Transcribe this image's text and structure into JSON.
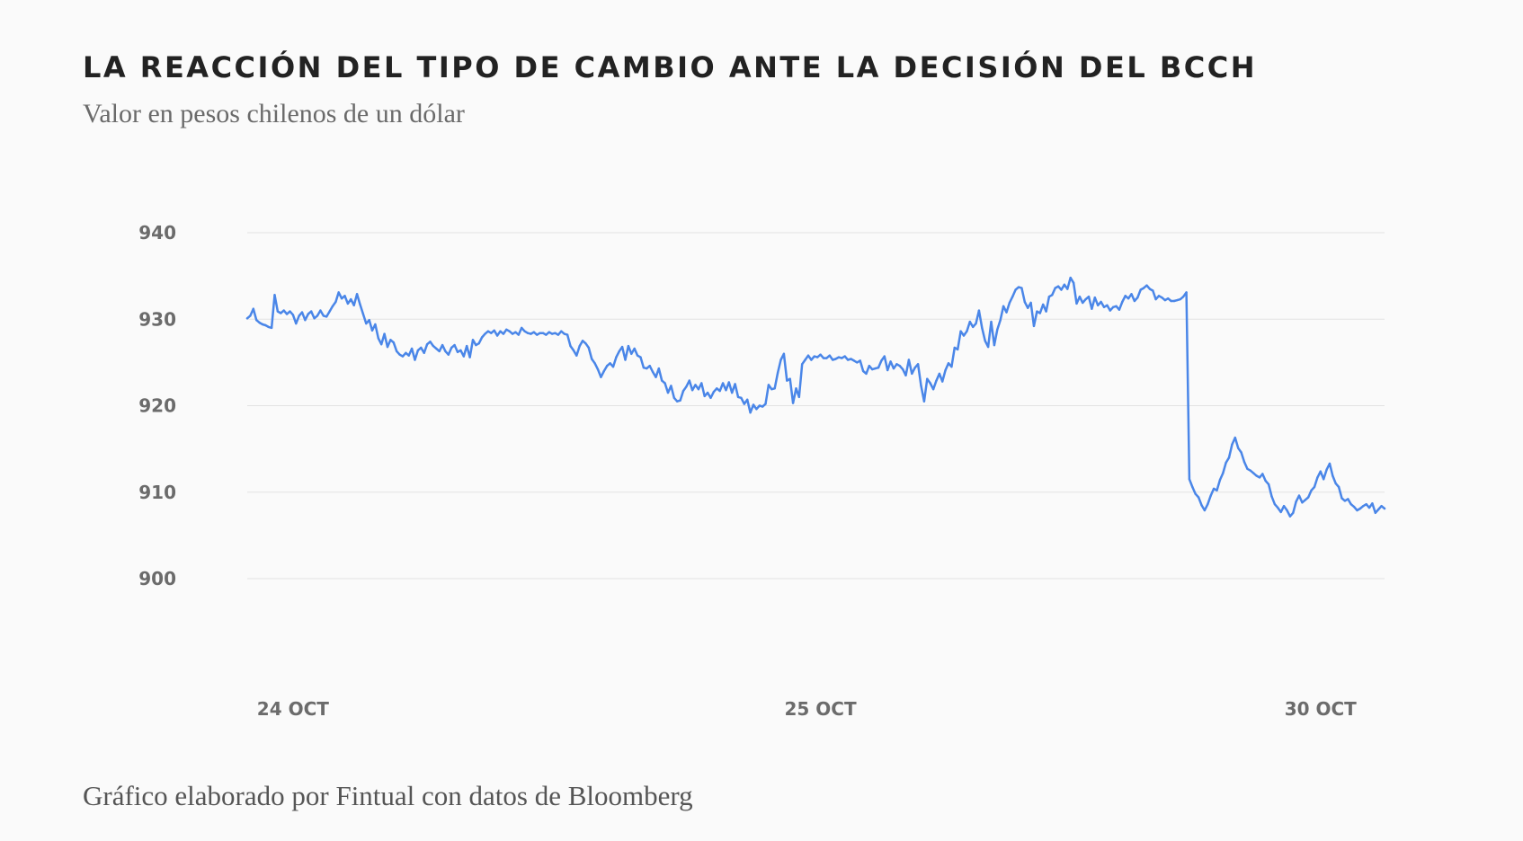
{
  "chart": {
    "title": "LA REACCIÓN DEL TIPO DE CAMBIO ANTE LA DECISIÓN DEL BCCH",
    "subtitle": "Valor en pesos chilenos de un dólar",
    "source": "Gráfico elaborado por Fintual con datos de Bloomberg"
  },
  "colors": {
    "line": "#4a86e8",
    "grid": "#e2e2e2",
    "background": "#fafafa"
  },
  "chart_data": {
    "type": "line",
    "title": "LA REACCIÓN DEL TIPO DE CAMBIO ANTE LA DECISIÓN DEL BCCH",
    "subtitle": "Valor en pesos chilenos de un dólar",
    "xlabel": "",
    "ylabel": "",
    "ylim": [
      900,
      940
    ],
    "y_ticks": [
      940,
      930,
      920,
      910,
      900
    ],
    "x_ticks": [
      {
        "label": "24 OCT",
        "at": 2
      },
      {
        "label": "25 OCT",
        "at": 175
      },
      {
        "label": "30 OCT",
        "at": 339
      }
    ],
    "grid": true,
    "legend": "none",
    "series": [
      {
        "values": [
          930.1,
          930.4,
          931.2,
          929.9,
          929.6,
          929.4,
          929.3,
          929.1,
          929.0,
          932.8,
          930.9,
          930.7,
          931.0,
          930.6,
          930.9,
          930.5,
          929.5,
          930.4,
          930.8,
          929.9,
          930.6,
          930.9,
          930.1,
          930.4,
          931.0,
          930.4,
          930.3,
          930.9,
          931.5,
          932.0,
          933.1,
          932.4,
          932.7,
          931.8,
          932.3,
          931.6,
          932.9,
          931.7,
          930.6,
          929.5,
          929.9,
          928.7,
          929.4,
          927.8,
          927.1,
          928.3,
          926.8,
          927.6,
          927.3,
          926.3,
          925.9,
          925.7,
          926.1,
          925.8,
          926.6,
          925.3,
          926.4,
          926.7,
          926.1,
          927.1,
          927.4,
          926.9,
          926.6,
          926.3,
          927.0,
          926.3,
          925.9,
          926.7,
          927.0,
          926.2,
          926.4,
          925.7,
          926.9,
          925.6,
          927.6,
          927.0,
          927.2,
          927.9,
          928.3,
          928.6,
          928.4,
          928.7,
          928.1,
          928.6,
          928.3,
          928.8,
          928.6,
          928.3,
          928.5,
          928.2,
          929.0,
          928.6,
          928.4,
          928.3,
          928.5,
          928.2,
          928.4,
          928.4,
          928.2,
          928.5,
          928.3,
          928.4,
          928.2,
          928.6,
          928.3,
          928.2,
          926.9,
          926.4,
          925.8,
          926.9,
          927.5,
          927.2,
          926.7,
          925.4,
          924.9,
          924.2,
          923.3,
          924.0,
          924.6,
          924.9,
          924.5,
          925.6,
          926.3,
          926.8,
          925.3,
          926.9,
          926.0,
          926.6,
          925.8,
          925.6,
          924.4,
          924.3,
          924.6,
          923.9,
          923.3,
          924.3,
          922.9,
          922.6,
          921.5,
          922.3,
          920.9,
          920.5,
          920.6,
          921.7,
          922.2,
          922.9,
          921.8,
          922.4,
          921.9,
          922.6,
          921.1,
          921.5,
          920.9,
          921.6,
          922.0,
          921.7,
          922.6,
          921.8,
          922.7,
          921.5,
          922.5,
          921.0,
          920.9,
          920.2,
          920.7,
          919.2,
          920.1,
          919.6,
          920.0,
          919.9,
          920.2,
          922.4,
          921.9,
          922.0,
          923.8,
          925.3,
          926.0,
          922.9,
          923.1,
          920.3,
          922.0,
          921.0,
          924.8,
          925.3,
          925.8,
          925.3,
          925.7,
          925.6,
          925.9,
          925.5,
          925.5,
          925.8,
          925.3,
          925.4,
          925.6,
          925.5,
          925.7,
          925.3,
          925.4,
          925.2,
          925.0,
          925.2,
          924.0,
          923.7,
          924.6,
          924.2,
          924.3,
          924.4,
          925.2,
          925.7,
          924.1,
          925.1,
          924.3,
          924.8,
          924.6,
          924.2,
          923.5,
          925.3,
          923.7,
          924.4,
          924.8,
          922.3,
          920.5,
          923.1,
          922.6,
          921.9,
          922.9,
          923.7,
          922.8,
          924.1,
          924.9,
          924.5,
          926.7,
          926.5,
          928.6,
          928.1,
          928.6,
          929.7,
          929.1,
          929.5,
          931.0,
          929.0,
          927.5,
          926.8,
          929.7,
          927.0,
          928.8,
          929.9,
          931.5,
          930.8,
          931.9,
          932.6,
          933.4,
          933.7,
          933.6,
          932.0,
          931.3,
          931.9,
          929.2,
          930.9,
          930.7,
          931.7,
          930.9,
          932.6,
          932.8,
          933.6,
          933.8,
          933.4,
          934.0,
          933.5,
          934.8,
          934.2,
          931.8,
          932.6,
          931.9,
          932.3,
          932.6,
          931.2,
          932.5,
          931.6,
          932.0,
          931.4,
          931.6,
          931.0,
          931.4,
          931.5,
          931.1,
          932.0,
          932.7,
          932.4,
          932.9,
          932.1,
          932.5,
          933.4,
          933.6,
          933.9,
          933.5,
          933.3,
          932.3,
          932.7,
          932.5,
          932.2,
          932.4,
          932.1,
          932.1,
          932.2,
          932.3,
          932.6,
          933.1,
          911.5,
          910.6,
          909.8,
          909.4,
          908.5,
          907.9,
          908.6,
          909.6,
          910.4,
          910.2,
          911.4,
          912.2,
          913.4,
          914.0,
          915.5,
          916.3,
          915.1,
          914.6,
          913.5,
          912.7,
          912.5,
          912.2,
          911.9,
          911.7,
          912.1,
          911.3,
          910.9,
          909.5,
          908.6,
          908.2,
          907.7,
          908.4,
          907.9,
          907.2,
          907.6,
          908.9,
          909.6,
          908.8,
          909.1,
          909.4,
          910.2,
          910.6,
          911.7,
          912.4,
          911.5,
          912.6,
          913.3,
          911.9,
          911.0,
          910.6,
          909.3,
          909.0,
          909.2,
          908.6,
          908.3,
          907.9,
          908.1,
          908.4,
          908.6,
          908.2,
          908.7,
          907.6,
          908.0,
          908.4,
          908.1
        ],
        "color": "#4a86e8"
      }
    ]
  }
}
